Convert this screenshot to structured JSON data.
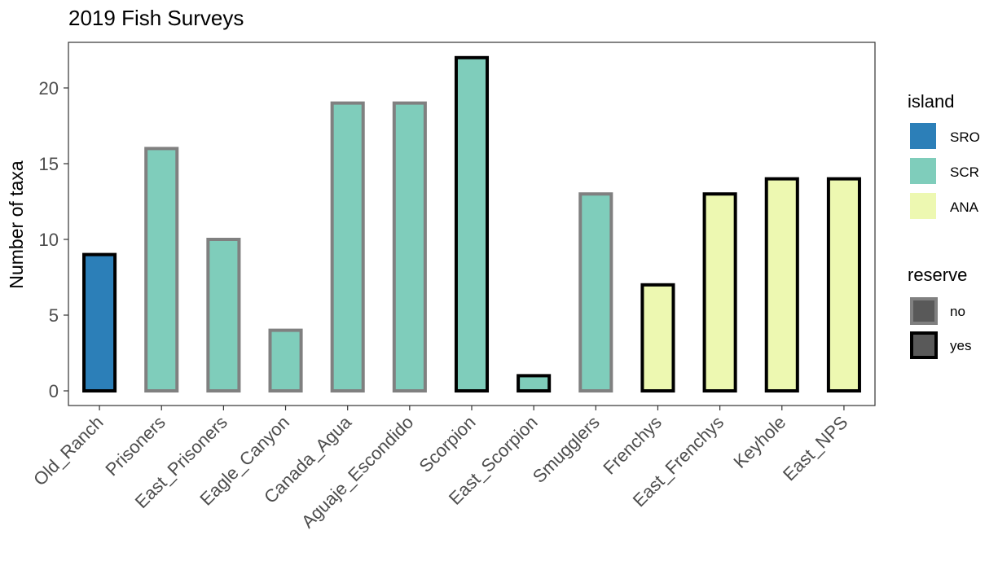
{
  "chart_data": {
    "type": "bar",
    "title": "2019 Fish Surveys",
    "xlabel": "",
    "ylabel": "Number of taxa",
    "ylim": [
      0,
      22
    ],
    "yticks": [
      0,
      5,
      10,
      15,
      20
    ],
    "grid": false,
    "categories": [
      "Old_Ranch",
      "Prisoners",
      "East_Prisoners",
      "Eagle_Canyon",
      "Canada_Agua",
      "Aguaje_Escondido",
      "Scorpion",
      "East_Scorpion",
      "Smugglers",
      "Frenchys",
      "East_Frenchys",
      "Keyhole",
      "East_NPS"
    ],
    "values": [
      9,
      16,
      10,
      4,
      19,
      19,
      22,
      1,
      13,
      7,
      13,
      14,
      14
    ],
    "island": [
      "SRO",
      "SCR",
      "SCR",
      "SCR",
      "SCR",
      "SCR",
      "SCR",
      "SCR",
      "SCR",
      "ANA",
      "ANA",
      "ANA",
      "ANA"
    ],
    "reserve": [
      "yes",
      "no",
      "no",
      "no",
      "no",
      "no",
      "yes",
      "yes",
      "no",
      "yes",
      "yes",
      "yes",
      "yes"
    ],
    "legend_position": "right",
    "legends": [
      {
        "title": "island",
        "type": "fill",
        "items": [
          {
            "label": "SRO",
            "color": "#2c7fb8"
          },
          {
            "label": "SCR",
            "color": "#7fcdbb"
          },
          {
            "label": "ANA",
            "color": "#edf8b1"
          }
        ]
      },
      {
        "title": "reserve",
        "type": "outline",
        "items": [
          {
            "label": "no",
            "color": "#808080"
          },
          {
            "label": "yes",
            "color": "#000000"
          }
        ]
      }
    ]
  }
}
